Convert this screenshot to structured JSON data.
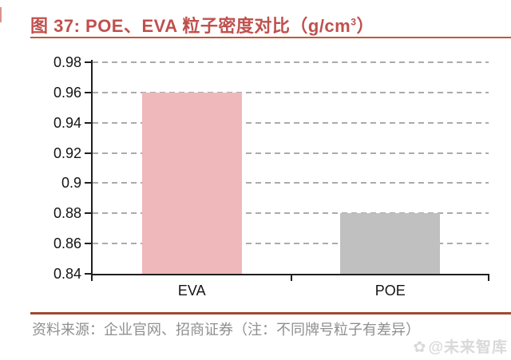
{
  "header": {
    "title_main": "图 37: POE、EVA 粒子密度对比（g/cm",
    "title_sup": "3",
    "title_end": "）",
    "accent_color": "#C0504D",
    "rule_color": "#C05A35"
  },
  "chart_data": {
    "type": "bar",
    "title": "图 37: POE、EVA 粒子密度对比（g/cm³）",
    "categories": [
      "EVA",
      "POE"
    ],
    "values": [
      0.96,
      0.88
    ],
    "unit": "g/cm³",
    "xlabel": "",
    "ylabel": "",
    "ylim": [
      0.84,
      0.98
    ],
    "yticks": [
      "0.98",
      "0.96",
      "0.94",
      "0.92",
      "0.9",
      "0.88",
      "0.86",
      "0.84"
    ],
    "grid": "horizontal-dashed",
    "legend": "none",
    "bar_colors": [
      "#EFB8BB",
      "#C0C0C0"
    ],
    "gridline_color": "#ABABAB",
    "axis_color": "#1f1f1f"
  },
  "footer": {
    "source": "资料来源：企业官网、招商证券（注：不同牌号粒子有差异）",
    "watermark_icon": "✿",
    "watermark": "@未来智库",
    "rule_color": "#A04B33"
  }
}
